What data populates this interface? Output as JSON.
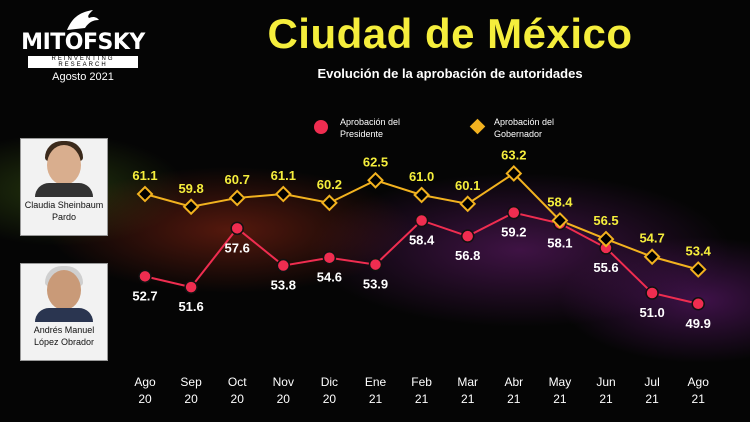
{
  "header": {
    "title": "Ciudad de México",
    "subtitle": "Evolución de la aprobación de autoridades"
  },
  "logo": {
    "name": "MITOFSKY",
    "tagline": "REINVENTING RESEARCH",
    "date": "Agosto 2021"
  },
  "people": {
    "governor": "Claudia Sheinbaum Pardo",
    "president": "Andrés Manuel López Obrador"
  },
  "colors": {
    "president": "#ef2d50",
    "governor": "#f2b21f",
    "title": "#f5ee3c"
  },
  "chart_data": {
    "type": "line",
    "categories": [
      [
        "Ago",
        "20"
      ],
      [
        "Sep",
        "20"
      ],
      [
        "Oct",
        "20"
      ],
      [
        "Nov",
        "20"
      ],
      [
        "Dic",
        "20"
      ],
      [
        "Ene",
        "21"
      ],
      [
        "Feb",
        "21"
      ],
      [
        "Mar",
        "21"
      ],
      [
        "Abr",
        "21"
      ],
      [
        "May",
        "21"
      ],
      [
        "Jun",
        "21"
      ],
      [
        "Jul",
        "21"
      ],
      [
        "Ago",
        "21"
      ]
    ],
    "series": [
      {
        "name": "Aprobación del Presidente",
        "marker": "circle",
        "values": [
          52.7,
          51.6,
          57.6,
          53.8,
          54.6,
          53.9,
          58.4,
          56.8,
          59.2,
          58.1,
          55.6,
          51.0,
          49.9
        ]
      },
      {
        "name": "Aprobación del Gobernador",
        "marker": "diamond",
        "values": [
          61.1,
          59.8,
          60.7,
          61.1,
          60.2,
          62.5,
          61.0,
          60.1,
          63.2,
          58.4,
          56.5,
          54.7,
          53.4
        ]
      }
    ],
    "ylim": [
      46,
      66
    ],
    "grid": false,
    "legend": "top-center"
  }
}
